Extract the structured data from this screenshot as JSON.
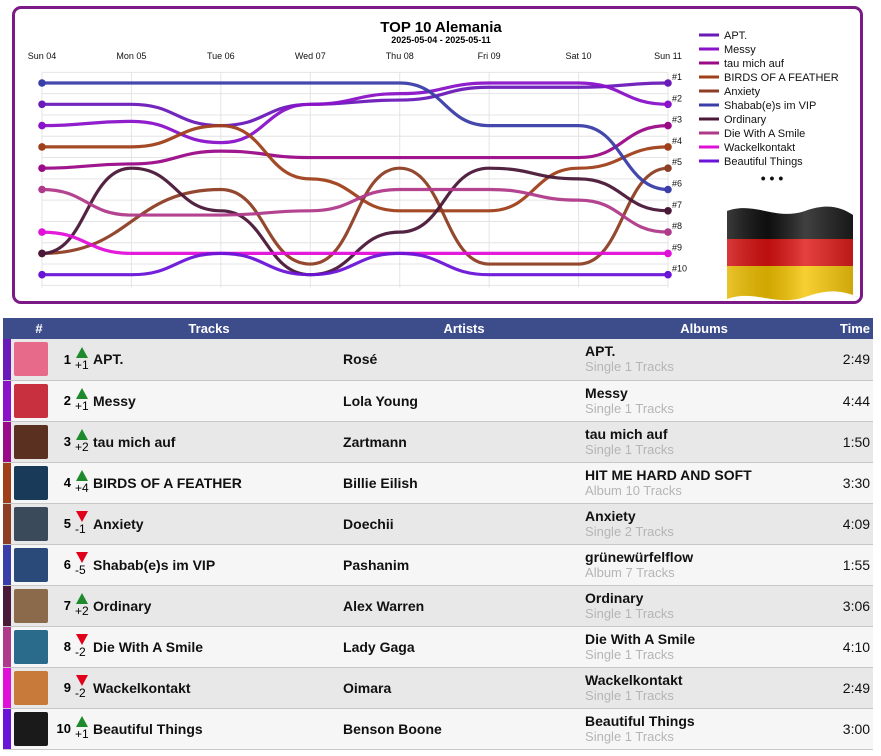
{
  "chart_data": {
    "type": "line",
    "title": "TOP 10 Alemania",
    "subtitle": "2025-05-04 - 2025-05-11",
    "x": [
      "Sun 04",
      "Mon 05",
      "Tue 06",
      "Wed 07",
      "Thu 08",
      "Fri 09",
      "Sat 10",
      "Sun 11"
    ],
    "y_tick_labels": [
      "#1",
      "#2",
      "#3",
      "#4",
      "#5",
      "#6",
      "#7",
      "#8",
      "#9",
      "#10"
    ],
    "ylim": [
      11,
      0
    ],
    "y_axis": "rank (inverted)",
    "grid": true,
    "legend": "right",
    "legend_more": "• • •",
    "series": [
      {
        "name": "APT.",
        "color": "#6a1ab8",
        "values": [
          2,
          2,
          3,
          2,
          1.8,
          1.2,
          1.2,
          1
        ]
      },
      {
        "name": "Messy",
        "color": "#8a12c8",
        "values": [
          3,
          2.8,
          3.8,
          2,
          1.5,
          1,
          1,
          2
        ]
      },
      {
        "name": "tau mich auf",
        "color": "#9a0a88",
        "values": [
          5,
          4.8,
          4.2,
          4.5,
          4.5,
          4.5,
          4.5,
          3
        ]
      },
      {
        "name": "BIRDS OF A FEATHER",
        "color": "#a0401a",
        "values": [
          4,
          4,
          3,
          5.5,
          7,
          7,
          5,
          4
        ]
      },
      {
        "name": "Anxiety",
        "color": "#8e3e24",
        "values": [
          9,
          null,
          6,
          9.5,
          5,
          9.5,
          9.5,
          5
        ]
      },
      {
        "name": "Shabab(e)s im VIP",
        "color": "#3a3ea8",
        "values": [
          1,
          1,
          1,
          1,
          1,
          3,
          3,
          6
        ]
      },
      {
        "name": "Ordinary",
        "color": "#4a1838",
        "values": [
          9,
          5,
          7,
          10,
          8,
          5,
          5.5,
          7
        ]
      },
      {
        "name": "Die With A Smile",
        "color": "#b03a8a",
        "values": [
          6,
          7.2,
          7.2,
          7,
          6,
          6,
          6.5,
          8
        ]
      },
      {
        "name": "Wackelkontakt",
        "color": "#e010d8",
        "values": [
          8,
          9,
          9,
          9,
          9,
          9,
          9,
          9
        ]
      },
      {
        "name": "Beautiful Things",
        "color": "#6a14d8",
        "values": [
          10,
          10,
          9,
          10,
          9,
          10,
          10,
          10
        ]
      }
    ]
  },
  "table": {
    "headers": {
      "pos": "#",
      "tracks": "Tracks",
      "artists": "Artists",
      "albums": "Albums",
      "time": "Time"
    },
    "rows": [
      {
        "pos": "1",
        "dir": "up",
        "change": "+1",
        "track": "APT.",
        "artist": "Rosé",
        "album": "APT.",
        "album_meta": "Single 1 Tracks",
        "time": "2:49",
        "color": "#6a1ab8",
        "cover_bg": "#e86a8a"
      },
      {
        "pos": "2",
        "dir": "up",
        "change": "+1",
        "track": "Messy",
        "artist": "Lola Young",
        "album": "Messy",
        "album_meta": "Single 1 Tracks",
        "time": "4:44",
        "color": "#8a12c8",
        "cover_bg": "#c83040"
      },
      {
        "pos": "3",
        "dir": "up",
        "change": "+2",
        "track": "tau mich auf",
        "artist": "Zartmann",
        "album": "tau mich auf",
        "album_meta": "Single 1 Tracks",
        "time": "1:50",
        "color": "#9a0a88",
        "cover_bg": "#5a3020"
      },
      {
        "pos": "4",
        "dir": "up",
        "change": "+4",
        "track": "BIRDS OF A FEATHER",
        "artist": "Billie Eilish",
        "album": "HIT ME HARD AND SOFT",
        "album_meta": "Album 10 Tracks",
        "time": "3:30",
        "color": "#a0401a",
        "cover_bg": "#1a3a5a"
      },
      {
        "pos": "5",
        "dir": "down",
        "change": "-1",
        "track": "Anxiety",
        "artist": "Doechii",
        "album": "Anxiety",
        "album_meta": "Single 2 Tracks",
        "time": "4:09",
        "color": "#8e3e24",
        "cover_bg": "#3a4a5a"
      },
      {
        "pos": "6",
        "dir": "down",
        "change": "-5",
        "track": "Shabab(e)s im VIP",
        "artist": "Pashanim",
        "album": "grünewürfelflow",
        "album_meta": "Album 7 Tracks",
        "time": "1:55",
        "color": "#3a3ea8",
        "cover_bg": "#2a4a7a"
      },
      {
        "pos": "7",
        "dir": "up",
        "change": "+2",
        "track": "Ordinary",
        "artist": "Alex Warren",
        "album": "Ordinary",
        "album_meta": "Single 1 Tracks",
        "time": "3:06",
        "color": "#4a1838",
        "cover_bg": "#8a6a4a"
      },
      {
        "pos": "8",
        "dir": "down",
        "change": "-2",
        "track": "Die With A Smile",
        "artist": "Lady Gaga",
        "album": "Die With A Smile",
        "album_meta": "Single 1 Tracks",
        "time": "4:10",
        "color": "#b03a8a",
        "cover_bg": "#2a6a8a"
      },
      {
        "pos": "9",
        "dir": "down",
        "change": "-2",
        "track": "Wackelkontakt",
        "artist": "Oimara",
        "album": "Wackelkontakt",
        "album_meta": "Single 1 Tracks",
        "time": "2:49",
        "color": "#e010d8",
        "cover_bg": "#c87a3a"
      },
      {
        "pos": "10",
        "dir": "up",
        "change": "+1",
        "track": "Beautiful Things",
        "artist": "Benson Boone",
        "album": "Beautiful Things",
        "album_meta": "Single 1 Tracks",
        "time": "3:00",
        "color": "#6a14d8",
        "cover_bg": "#1a1a1a"
      }
    ]
  },
  "flag": {
    "colors": [
      "#111111",
      "#dd1111",
      "#f5c400"
    ]
  }
}
